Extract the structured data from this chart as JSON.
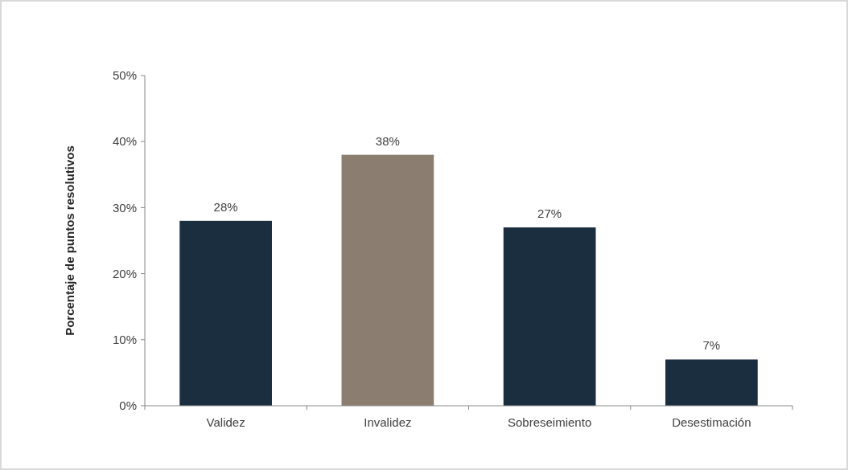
{
  "chart_data": {
    "type": "bar",
    "ylabel": "Porcentaje de puntos resolutivos",
    "categories": [
      "Validez",
      "Invalidez",
      "Sobreseimiento",
      "Desestimación"
    ],
    "values": [
      28,
      38,
      27,
      7
    ],
    "colors": [
      "#1b2e3f",
      "#8b7d6f",
      "#1b2e3f",
      "#1b2e3f"
    ],
    "value_labels": [
      "28%",
      "38%",
      "27%",
      "7%"
    ],
    "ylim": [
      0,
      50
    ],
    "yticks": [
      {
        "value": 0,
        "label": "0%"
      },
      {
        "value": 10,
        "label": "10%"
      },
      {
        "value": 20,
        "label": "20%"
      },
      {
        "value": 30,
        "label": "30%"
      },
      {
        "value": 40,
        "label": "40%"
      },
      {
        "value": 50,
        "label": "50%"
      }
    ],
    "grid": false
  }
}
